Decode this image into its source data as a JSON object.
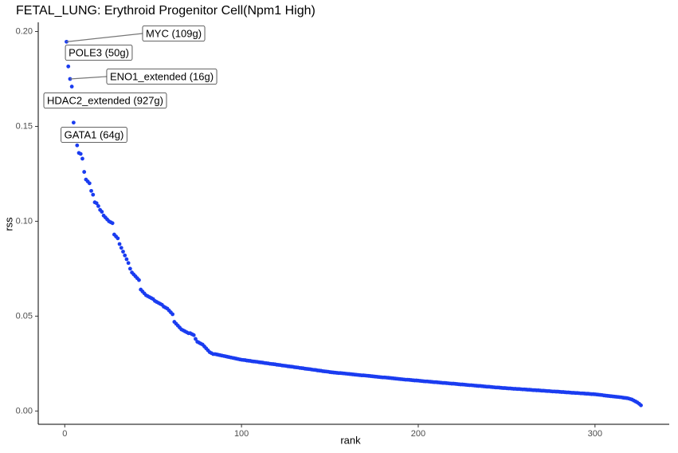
{
  "chart_data": {
    "type": "scatter",
    "title": "FETAL_LUNG: Erythroid Progenitor Cell(Npm1 High)",
    "x_label": "rank",
    "y_label": "rss",
    "color": "#1a3cf0",
    "xlim": [
      -15,
      342
    ],
    "ylim": [
      -0.007,
      0.204
    ],
    "xticks": [
      0,
      100,
      200,
      300
    ],
    "yticks": [
      {
        "value": 0,
        "label": "0.00"
      },
      {
        "value": 0.05,
        "label": "0.05"
      },
      {
        "value": 0.1,
        "label": "0.10"
      },
      {
        "value": 0.15,
        "label": "0.15"
      },
      {
        "value": 0.2,
        "label": "0.20"
      }
    ],
    "grid": false,
    "annotations": [
      {
        "text": "MYC (109g)",
        "x": 1
      },
      {
        "text": "POLE3 (50g)",
        "x": 2
      },
      {
        "text": "ENO1_extended (16g)",
        "x": 3
      },
      {
        "text": "HDAC2_extended (927g)",
        "x": 4
      },
      {
        "text": "GATA1 (64g)",
        "x": 5
      }
    ],
    "x": [
      1,
      2,
      3,
      4,
      5,
      6,
      7,
      8,
      9,
      10,
      11,
      12,
      13,
      14,
      15,
      16,
      17,
      18,
      19,
      20,
      21,
      22,
      23,
      24,
      25,
      26,
      27,
      28,
      29,
      30,
      31,
      32,
      33,
      34,
      35,
      36,
      37,
      38,
      39,
      40,
      41,
      42,
      43,
      44,
      45,
      46,
      47,
      48,
      49,
      50,
      51,
      52,
      53,
      54,
      55,
      56,
      57,
      58,
      59,
      60,
      61,
      62,
      63,
      64,
      65,
      66,
      67,
      68,
      69,
      70,
      71,
      72,
      73,
      74,
      75,
      76,
      77,
      78,
      79,
      80,
      81,
      82,
      83,
      84,
      85,
      86,
      87,
      88,
      89,
      90,
      91,
      92,
      93,
      94,
      95,
      96,
      97,
      98,
      99,
      100,
      101,
      102,
      103,
      104,
      105,
      106,
      107,
      108,
      109,
      110,
      111,
      112,
      113,
      114,
      115,
      116,
      117,
      118,
      119,
      120,
      121,
      122,
      123,
      124,
      125,
      126,
      127,
      128,
      129,
      130,
      131,
      132,
      133,
      134,
      135,
      136,
      137,
      138,
      139,
      140,
      141,
      142,
      143,
      144,
      145,
      146,
      147,
      148,
      149,
      150,
      151,
      152,
      153,
      154,
      155,
      156,
      157,
      158,
      159,
      160,
      161,
      162,
      163,
      164,
      165,
      166,
      167,
      168,
      169,
      170,
      171,
      172,
      173,
      174,
      175,
      176,
      177,
      178,
      179,
      180,
      181,
      182,
      183,
      184,
      185,
      186,
      187,
      188,
      189,
      190,
      191,
      192,
      193,
      194,
      195,
      196,
      197,
      198,
      199,
      200,
      201,
      202,
      203,
      204,
      205,
      206,
      207,
      208,
      209,
      210,
      211,
      212,
      213,
      214,
      215,
      216,
      217,
      218,
      219,
      220,
      221,
      222,
      223,
      224,
      225,
      226,
      227,
      228,
      229,
      230,
      231,
      232,
      233,
      234,
      235,
      236,
      237,
      238,
      239,
      240,
      241,
      242,
      243,
      244,
      245,
      246,
      247,
      248,
      249,
      250,
      251,
      252,
      253,
      254,
      255,
      256,
      257,
      258,
      259,
      260,
      261,
      262,
      263,
      264,
      265,
      266,
      267,
      268,
      269,
      270,
      271,
      272,
      273,
      274,
      275,
      276,
      277,
      278,
      279,
      280,
      281,
      282,
      283,
      284,
      285,
      286,
      287,
      288,
      289,
      290,
      291,
      292,
      293,
      294,
      295,
      296,
      297,
      298,
      299,
      300,
      301,
      302,
      303,
      304,
      305,
      306,
      307,
      308,
      309,
      310,
      311,
      312,
      313,
      314,
      315,
      316,
      317,
      318,
      319,
      320,
      321,
      322,
      323,
      324,
      325,
      326
    ],
    "values": [
      0.1946,
      0.1816,
      0.175,
      0.171,
      0.152,
      0.144,
      0.14,
      0.136,
      0.1355,
      0.133,
      0.126,
      0.122,
      0.121,
      0.12,
      0.116,
      0.114,
      0.11,
      0.1095,
      0.108,
      0.106,
      0.105,
      0.103,
      0.102,
      0.101,
      0.1,
      0.0995,
      0.099,
      0.093,
      0.092,
      0.091,
      0.088,
      0.086,
      0.084,
      0.082,
      0.08,
      0.078,
      0.075,
      0.073,
      0.072,
      0.071,
      0.07,
      0.069,
      0.064,
      0.063,
      0.062,
      0.061,
      0.0605,
      0.06,
      0.0595,
      0.059,
      0.058,
      0.0575,
      0.057,
      0.0565,
      0.056,
      0.055,
      0.0545,
      0.054,
      0.053,
      0.052,
      0.051,
      0.047,
      0.046,
      0.045,
      0.044,
      0.043,
      0.0425,
      0.042,
      0.0415,
      0.041,
      0.041,
      0.0405,
      0.04,
      0.038,
      0.0365,
      0.036,
      0.0355,
      0.035,
      0.034,
      0.033,
      0.032,
      0.031,
      0.0305,
      0.03,
      0.03,
      0.0298,
      0.0296,
      0.0294,
      0.0292,
      0.029,
      0.0288,
      0.0286,
      0.0284,
      0.0282,
      0.028,
      0.0278,
      0.0276,
      0.0274,
      0.0272,
      0.027,
      0.0269,
      0.0268,
      0.0266,
      0.0265,
      0.0264,
      0.0262,
      0.0261,
      0.026,
      0.0259,
      0.0257,
      0.0256,
      0.0255,
      0.0253,
      0.0252,
      0.0251,
      0.0249,
      0.0248,
      0.0247,
      0.0246,
      0.0244,
      0.0243,
      0.0242,
      0.024,
      0.0239,
      0.0238,
      0.0236,
      0.0235,
      0.0234,
      0.0233,
      0.0231,
      0.023,
      0.0229,
      0.0227,
      0.0226,
      0.0225,
      0.0223,
      0.0222,
      0.0221,
      0.022,
      0.0218,
      0.0217,
      0.0216,
      0.0214,
      0.0213,
      0.0212,
      0.021,
      0.0209,
      0.0208,
      0.0207,
      0.0205,
      0.0204,
      0.0203,
      0.0202,
      0.0201,
      0.02,
      0.02,
      0.0199,
      0.0198,
      0.0197,
      0.0196,
      0.0195,
      0.0194,
      0.0193,
      0.0192,
      0.0191,
      0.019,
      0.0189,
      0.0188,
      0.0188,
      0.0187,
      0.0186,
      0.0185,
      0.0184,
      0.0183,
      0.0182,
      0.0181,
      0.018,
      0.0179,
      0.0178,
      0.0177,
      0.0177,
      0.0176,
      0.0175,
      0.0174,
      0.0173,
      0.0172,
      0.0171,
      0.017,
      0.0169,
      0.0168,
      0.0167,
      0.0166,
      0.0165,
      0.0165,
      0.0164,
      0.0163,
      0.0162,
      0.0161,
      0.0161,
      0.016,
      0.0159,
      0.0158,
      0.0157,
      0.0156,
      0.0156,
      0.0155,
      0.0154,
      0.0153,
      0.0152,
      0.0152,
      0.0151,
      0.015,
      0.0149,
      0.0148,
      0.0148,
      0.0147,
      0.0146,
      0.0145,
      0.0144,
      0.0144,
      0.0143,
      0.0142,
      0.0141,
      0.014,
      0.014,
      0.0139,
      0.0138,
      0.0137,
      0.0136,
      0.0136,
      0.0135,
      0.0134,
      0.0133,
      0.0132,
      0.0132,
      0.0131,
      0.013,
      0.0129,
      0.0128,
      0.0128,
      0.0127,
      0.0126,
      0.0125,
      0.0124,
      0.0124,
      0.0123,
      0.0122,
      0.0121,
      0.0121,
      0.012,
      0.0119,
      0.0119,
      0.0118,
      0.0117,
      0.0117,
      0.0116,
      0.0116,
      0.0115,
      0.0114,
      0.0114,
      0.0113,
      0.0112,
      0.0112,
      0.0111,
      0.011,
      0.011,
      0.0109,
      0.0109,
      0.0108,
      0.0107,
      0.0107,
      0.0106,
      0.0105,
      0.0105,
      0.0104,
      0.0103,
      0.0103,
      0.0102,
      0.0102,
      0.0101,
      0.01,
      0.01,
      0.0099,
      0.0098,
      0.0098,
      0.0097,
      0.0096,
      0.0096,
      0.0095,
      0.0095,
      0.0094,
      0.0093,
      0.0093,
      0.0092,
      0.0091,
      0.0091,
      0.009,
      0.0089,
      0.0089,
      0.0088,
      0.0087,
      0.0086,
      0.0085,
      0.0084,
      0.0082,
      0.0081,
      0.008,
      0.0079,
      0.0078,
      0.0077,
      0.0076,
      0.0075,
      0.0074,
      0.0073,
      0.0072,
      0.007,
      0.0069,
      0.0068,
      0.0066,
      0.0063,
      0.006,
      0.0055,
      0.005,
      0.0045,
      0.0038,
      0.003
    ]
  }
}
